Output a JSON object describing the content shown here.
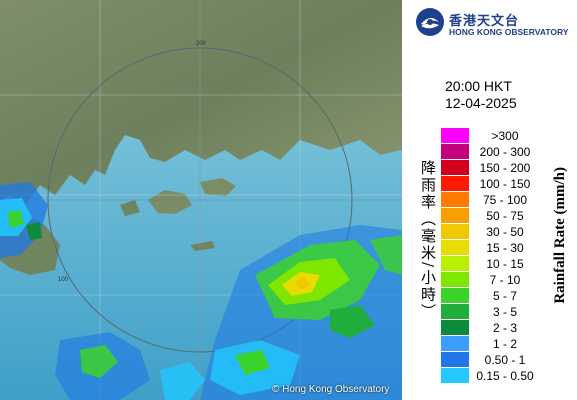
{
  "header": {
    "org_zh": "香港天文台",
    "org_en": "HONG KONG OBSERVATORY"
  },
  "timestamp": {
    "time": "20:00 HKT",
    "date": "12-04-2025"
  },
  "map": {
    "credit": "© Hong Kong Observatory",
    "range_labels": [
      "100",
      "200"
    ]
  },
  "legend": {
    "unit_zh": "降雨率（毫米/小時）",
    "unit_en": "Rainfall Rate (mm/h)",
    "items": [
      {
        "label": ">300",
        "color": "#ff00ff"
      },
      {
        "label": "200 - 300",
        "color": "#c4007c"
      },
      {
        "label": "150 - 200",
        "color": "#d2001e"
      },
      {
        "label": "100 - 150",
        "color": "#ff1a00"
      },
      {
        "label": "75 - 100",
        "color": "#ff7a00"
      },
      {
        "label": "50 - 75",
        "color": "#f5a000"
      },
      {
        "label": "30 - 50",
        "color": "#f0c800"
      },
      {
        "label": "15 - 30",
        "color": "#e8dd00"
      },
      {
        "label": "10 - 15",
        "color": "#b8f000"
      },
      {
        "label": "7 - 10",
        "color": "#7ee600"
      },
      {
        "label": "5 - 7",
        "color": "#3cd22c"
      },
      {
        "label": "3 - 5",
        "color": "#1fae3c"
      },
      {
        "label": "2 - 3",
        "color": "#0e8a3c"
      },
      {
        "label": "1 - 2",
        "color": "#3c9cff"
      },
      {
        "label": "0.50 - 1",
        "color": "#1f78e6"
      },
      {
        "label": "0.15 - 0.50",
        "color": "#22c8ff"
      }
    ]
  }
}
